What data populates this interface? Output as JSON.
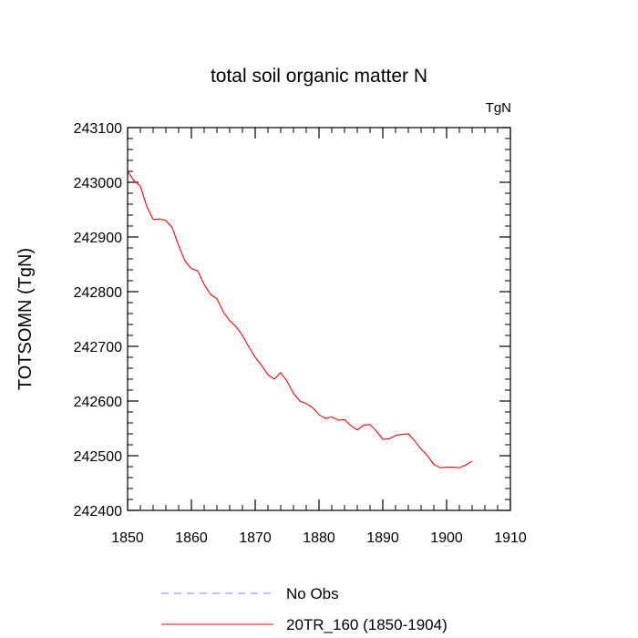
{
  "chart_data": {
    "type": "line",
    "title": "total soil organic matter N",
    "units_label": "TgN",
    "ylabel": "TOTSOMN  (TgN)",
    "xlabel": "",
    "xlim": [
      1850,
      1910
    ],
    "ylim": [
      242400,
      243100
    ],
    "x_ticks": [
      1850,
      1860,
      1870,
      1880,
      1890,
      1900,
      1910
    ],
    "y_ticks": [
      242400,
      242500,
      242600,
      242700,
      242800,
      242900,
      243000,
      243100
    ],
    "series": [
      {
        "name": "20TR_160 (1850-1904)",
        "color": "#ff0000",
        "style": "solid",
        "x": [
          1850,
          1851,
          1852,
          1853,
          1854,
          1855,
          1856,
          1857,
          1858,
          1859,
          1860,
          1861,
          1862,
          1863,
          1864,
          1865,
          1866,
          1867,
          1868,
          1869,
          1870,
          1871,
          1872,
          1873,
          1874,
          1875,
          1876,
          1877,
          1878,
          1879,
          1880,
          1881,
          1882,
          1883,
          1884,
          1885,
          1886,
          1887,
          1888,
          1889,
          1890,
          1891,
          1892,
          1893,
          1894,
          1895,
          1896,
          1897,
          1898,
          1899,
          1900,
          1901,
          1902,
          1903,
          1904
        ],
        "values": [
          243020,
          243003,
          242993,
          242956,
          242932,
          242933,
          242930,
          242917,
          242884,
          242856,
          242842,
          242838,
          242813,
          242795,
          242787,
          242763,
          242747,
          242736,
          242720,
          242699,
          242680,
          242665,
          242648,
          242640,
          242652,
          242636,
          242614,
          242600,
          242595,
          242588,
          242575,
          242568,
          242571,
          242565,
          242566,
          242555,
          242547,
          242556,
          242557,
          242545,
          242530,
          242531,
          242537,
          242539,
          242540,
          242527,
          242512,
          242500,
          242484,
          242478,
          242479,
          242479,
          242478,
          242483,
          242490
        ]
      },
      {
        "name": "No Obs",
        "color": "#8080ff",
        "style": "dashed",
        "x": [],
        "values": []
      }
    ],
    "legend": "bottom",
    "grid": false
  }
}
